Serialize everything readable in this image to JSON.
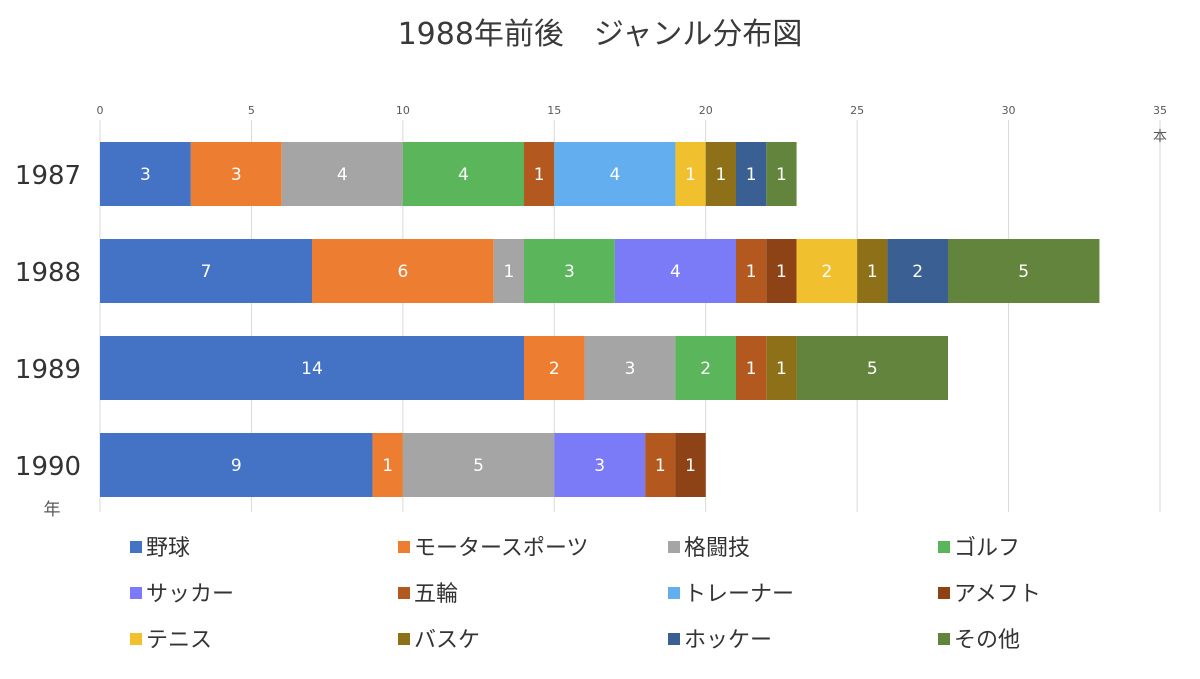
{
  "chart_data": {
    "type": "bar",
    "orientation": "horizontal",
    "stacked": true,
    "title": "1988年前後　ジャンル分布図",
    "x_unit_label": "本",
    "y_unit_label": "年",
    "xlim": [
      0,
      35
    ],
    "x_ticks": [
      0,
      5,
      10,
      15,
      20,
      25,
      30,
      35
    ],
    "grid": true,
    "legend_position": "bottom",
    "categories": [
      "1987",
      "1988",
      "1989",
      "1990"
    ],
    "series": [
      {
        "name": "野球",
        "color": "#4472C4",
        "values": [
          3,
          7,
          14,
          9
        ]
      },
      {
        "name": "モータースポーツ",
        "color": "#ED7D31",
        "values": [
          3,
          6,
          2,
          1
        ]
      },
      {
        "name": "格闘技",
        "color": "#A5A5A5",
        "values": [
          4,
          1,
          3,
          5
        ]
      },
      {
        "name": "ゴルフ",
        "color": "#5BB55B",
        "values": [
          4,
          3,
          2,
          null
        ]
      },
      {
        "name": "サッカー",
        "color": "#7B7BF8",
        "values": [
          null,
          4,
          null,
          3
        ]
      },
      {
        "name": "五輪",
        "color": "#B3591F",
        "values": [
          1,
          1,
          1,
          1
        ]
      },
      {
        "name": "トレーナー",
        "color": "#63AEEE",
        "values": [
          4,
          null,
          null,
          null
        ]
      },
      {
        "name": "アメフト",
        "color": "#8E4317",
        "values": [
          null,
          1,
          null,
          1
        ]
      },
      {
        "name": "テニス",
        "color": "#F0C02E",
        "values": [
          1,
          2,
          null,
          null
        ]
      },
      {
        "name": "バスケ",
        "color": "#8E7018",
        "values": [
          1,
          1,
          1,
          null
        ]
      },
      {
        "name": "ホッケー",
        "color": "#3A5F92",
        "values": [
          1,
          2,
          null,
          null
        ]
      },
      {
        "name": "その他",
        "color": "#62843C",
        "values": [
          1,
          5,
          5,
          null
        ]
      }
    ]
  }
}
